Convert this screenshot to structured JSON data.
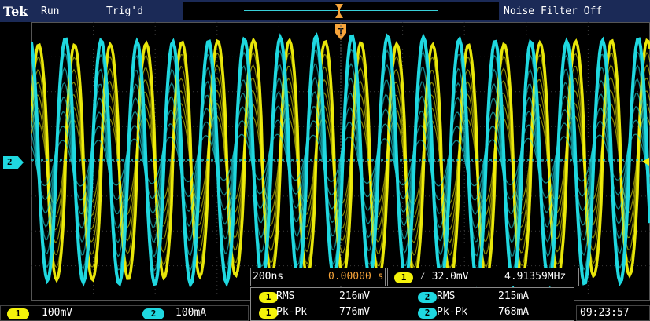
{
  "topbar": {
    "brand": "Tek",
    "acq_state": "Run",
    "trig_state": "Trig'd",
    "noise_filter": "Noise Filter Off"
  },
  "channel_markers": {
    "ch2": "2"
  },
  "timebase": {
    "scale": "200ns",
    "position": "0.00000 s"
  },
  "trigger": {
    "channel": "1",
    "slope_level": "⁄ 32.0mV",
    "frequency": "4.91359MHz"
  },
  "measurements": {
    "ch1_rms_label": "RMS",
    "ch1_rms_value": "216mV",
    "ch2_rms_label": "RMS",
    "ch2_rms_value": "215mA",
    "ch1_pkpk_label": "Pk-Pk",
    "ch1_pkpk_value": "776mV",
    "ch2_pkpk_label": "Pk-Pk",
    "ch2_pkpk_value": "768mA",
    "ch1_badge": "1",
    "ch2_badge": "2"
  },
  "vertical": {
    "ch1_badge": "1",
    "ch1_scale": "100mV",
    "ch2_badge": "2",
    "ch2_scale": "100mA"
  },
  "clock": "09:23:57",
  "colors": {
    "ch1": "#f4f20a",
    "ch2": "#1fd8e0",
    "bar": "#1b2a57",
    "trigger_marker": "#f7a43a"
  }
}
